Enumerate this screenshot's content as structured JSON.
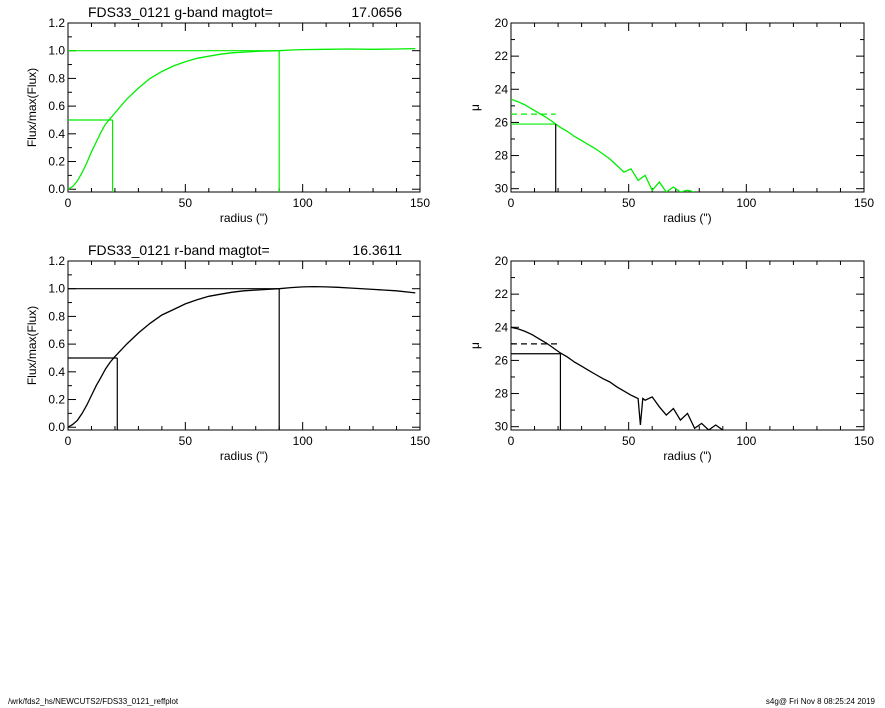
{
  "footer": {
    "path": "/wrk/fds2_hs/NEWCUTS2/FDS33_0121_reffplot",
    "stamp": "s4g@  Fri Nov  8 08:25:24 2019"
  },
  "colors": {
    "g_band": "#00ee00",
    "r_band": "#000000",
    "axes": "#000000"
  },
  "chart_data": [
    {
      "type": "line",
      "panel": "g-growth",
      "title_main": "FDS33_0121 g-band  magtot=",
      "title_value": "17.0656",
      "xlabel": "radius (\")",
      "ylabel": "Flux/max(Flux)",
      "xlim": [
        0,
        150
      ],
      "ylim": [
        -0.02,
        1.2
      ],
      "xticks": [
        "0",
        "50",
        "100",
        "150"
      ],
      "yticks": [
        "0.0",
        "0.2",
        "0.4",
        "0.6",
        "0.8",
        "1.0",
        "1.2"
      ],
      "color_key": "g_band",
      "series": [
        {
          "x": [
            0,
            2,
            4,
            6,
            8,
            10,
            12,
            14,
            16,
            18,
            20,
            25,
            30,
            35,
            40,
            45,
            50,
            55,
            60,
            65,
            70,
            75,
            80,
            85,
            90,
            95,
            100,
            110,
            120,
            130,
            140,
            148
          ],
          "y": [
            0.0,
            0.02,
            0.06,
            0.12,
            0.19,
            0.27,
            0.34,
            0.41,
            0.47,
            0.51,
            0.55,
            0.65,
            0.73,
            0.8,
            0.85,
            0.89,
            0.92,
            0.945,
            0.96,
            0.975,
            0.985,
            0.99,
            0.995,
            0.998,
            1.0,
            1.005,
            1.008,
            1.01,
            1.012,
            1.01,
            1.012,
            1.015
          ]
        }
      ],
      "markers": [
        {
          "label": "half-light",
          "x": 19,
          "y": 0.5
        },
        {
          "label": "total",
          "x": 90,
          "y": 1.0
        }
      ]
    },
    {
      "type": "line",
      "panel": "g-profile",
      "xlabel": "radius (\")",
      "ylabel": "μ",
      "xlim": [
        0,
        150
      ],
      "ylim": [
        30.2,
        20
      ],
      "xticks": [
        "0",
        "50",
        "100",
        "150"
      ],
      "yticks": [
        "20",
        "22",
        "24",
        "26",
        "28",
        "30"
      ],
      "color_key": "g_band",
      "series": [
        {
          "x": [
            0,
            3,
            6,
            9,
            12,
            15,
            18,
            21,
            24,
            27,
            30,
            33,
            36,
            39,
            42,
            45,
            48,
            51,
            54,
            57,
            60,
            63,
            66,
            69,
            72,
            75,
            78
          ],
          "y": [
            24.6,
            24.75,
            24.95,
            25.2,
            25.45,
            25.7,
            26.0,
            26.3,
            26.55,
            26.85,
            27.1,
            27.35,
            27.6,
            27.9,
            28.2,
            28.6,
            29.0,
            28.8,
            29.5,
            29.2,
            30.1,
            29.6,
            30.2,
            29.9,
            30.2,
            30.1,
            30.2
          ]
        }
      ],
      "markers": [
        {
          "label": "mean-mu",
          "x_end": 19,
          "y": 25.5
        },
        {
          "label": "mu-at-reff",
          "x": 19,
          "y": 26.1
        }
      ]
    },
    {
      "type": "line",
      "panel": "r-growth",
      "title_main": "FDS33_0121 r-band  magtot=",
      "title_value": "16.3611",
      "xlabel": "radius (\")",
      "ylabel": "Flux/max(Flux)",
      "xlim": [
        0,
        150
      ],
      "ylim": [
        -0.02,
        1.2
      ],
      "xticks": [
        "0",
        "50",
        "100",
        "150"
      ],
      "yticks": [
        "0.0",
        "0.2",
        "0.4",
        "0.6",
        "0.8",
        "1.0",
        "1.2"
      ],
      "color_key": "r_band",
      "series": [
        {
          "x": [
            0,
            2,
            4,
            6,
            8,
            10,
            12,
            14,
            16,
            18,
            20,
            25,
            30,
            35,
            40,
            45,
            50,
            55,
            60,
            65,
            70,
            75,
            80,
            85,
            90,
            95,
            100,
            105,
            110,
            115,
            120,
            130,
            140,
            148
          ],
          "y": [
            0.0,
            0.02,
            0.05,
            0.1,
            0.16,
            0.23,
            0.3,
            0.36,
            0.42,
            0.47,
            0.51,
            0.6,
            0.68,
            0.75,
            0.81,
            0.85,
            0.89,
            0.92,
            0.945,
            0.96,
            0.975,
            0.985,
            0.99,
            0.995,
            1.0,
            1.008,
            1.013,
            1.015,
            1.013,
            1.01,
            1.005,
            0.995,
            0.985,
            0.97
          ]
        }
      ],
      "markers": [
        {
          "label": "half-light",
          "x": 21,
          "y": 0.5
        },
        {
          "label": "total",
          "x": 90,
          "y": 1.0
        }
      ]
    },
    {
      "type": "line",
      "panel": "r-profile",
      "xlabel": "radius (\")",
      "ylabel": "μ",
      "xlim": [
        0,
        150
      ],
      "ylim": [
        30.2,
        20
      ],
      "xticks": [
        "0",
        "50",
        "100",
        "150"
      ],
      "yticks": [
        "20",
        "22",
        "24",
        "26",
        "28",
        "30"
      ],
      "color_key": "r_band",
      "series": [
        {
          "x": [
            0,
            3,
            6,
            9,
            12,
            15,
            18,
            21,
            24,
            27,
            30,
            33,
            36,
            39,
            42,
            45,
            48,
            51,
            54,
            55,
            56,
            57,
            60,
            63,
            66,
            69,
            72,
            75,
            78,
            81,
            84,
            87,
            90
          ],
          "y": [
            24.0,
            24.1,
            24.25,
            24.45,
            24.7,
            24.95,
            25.25,
            25.55,
            25.8,
            26.1,
            26.35,
            26.6,
            26.85,
            27.1,
            27.3,
            27.6,
            27.85,
            28.1,
            28.3,
            29.9,
            28.3,
            28.4,
            28.2,
            28.8,
            29.3,
            28.9,
            29.6,
            29.2,
            30.1,
            29.8,
            30.2,
            29.9,
            30.2
          ]
        }
      ],
      "markers": [
        {
          "label": "mean-mu",
          "x_end": 21,
          "y": 25.0
        },
        {
          "label": "mu-at-reff",
          "x": 21,
          "y": 25.6
        }
      ]
    }
  ]
}
